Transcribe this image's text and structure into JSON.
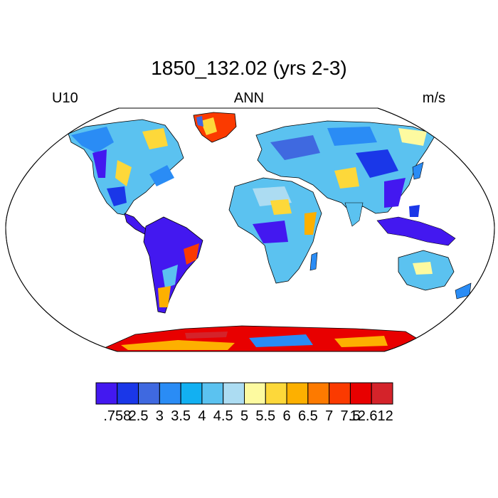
{
  "title": "1850_132.02 (yrs 2-3)",
  "left_label": "U10",
  "center_label": "ANN",
  "right_label": "m/s",
  "colorbar": {
    "colors": [
      "#4318f0",
      "#1a37e8",
      "#3f69e0",
      "#2a8cf5",
      "#12b0f2",
      "#5bc2f0",
      "#acdcf2",
      "#fdfaa0",
      "#fdd83a",
      "#fdb000",
      "#fd7a00",
      "#fb3a00",
      "#e80000",
      "#d4232a"
    ],
    "labels": [
      ".758",
      "2.5",
      "3",
      "3.5",
      "4",
      "4.5",
      "5",
      "5.5",
      "6",
      "6.5",
      "7",
      "7.5",
      "12.612"
    ]
  },
  "map_colors": {
    "ocean": "#ffffff",
    "coast": "#000000",
    "border": "#000000"
  }
}
